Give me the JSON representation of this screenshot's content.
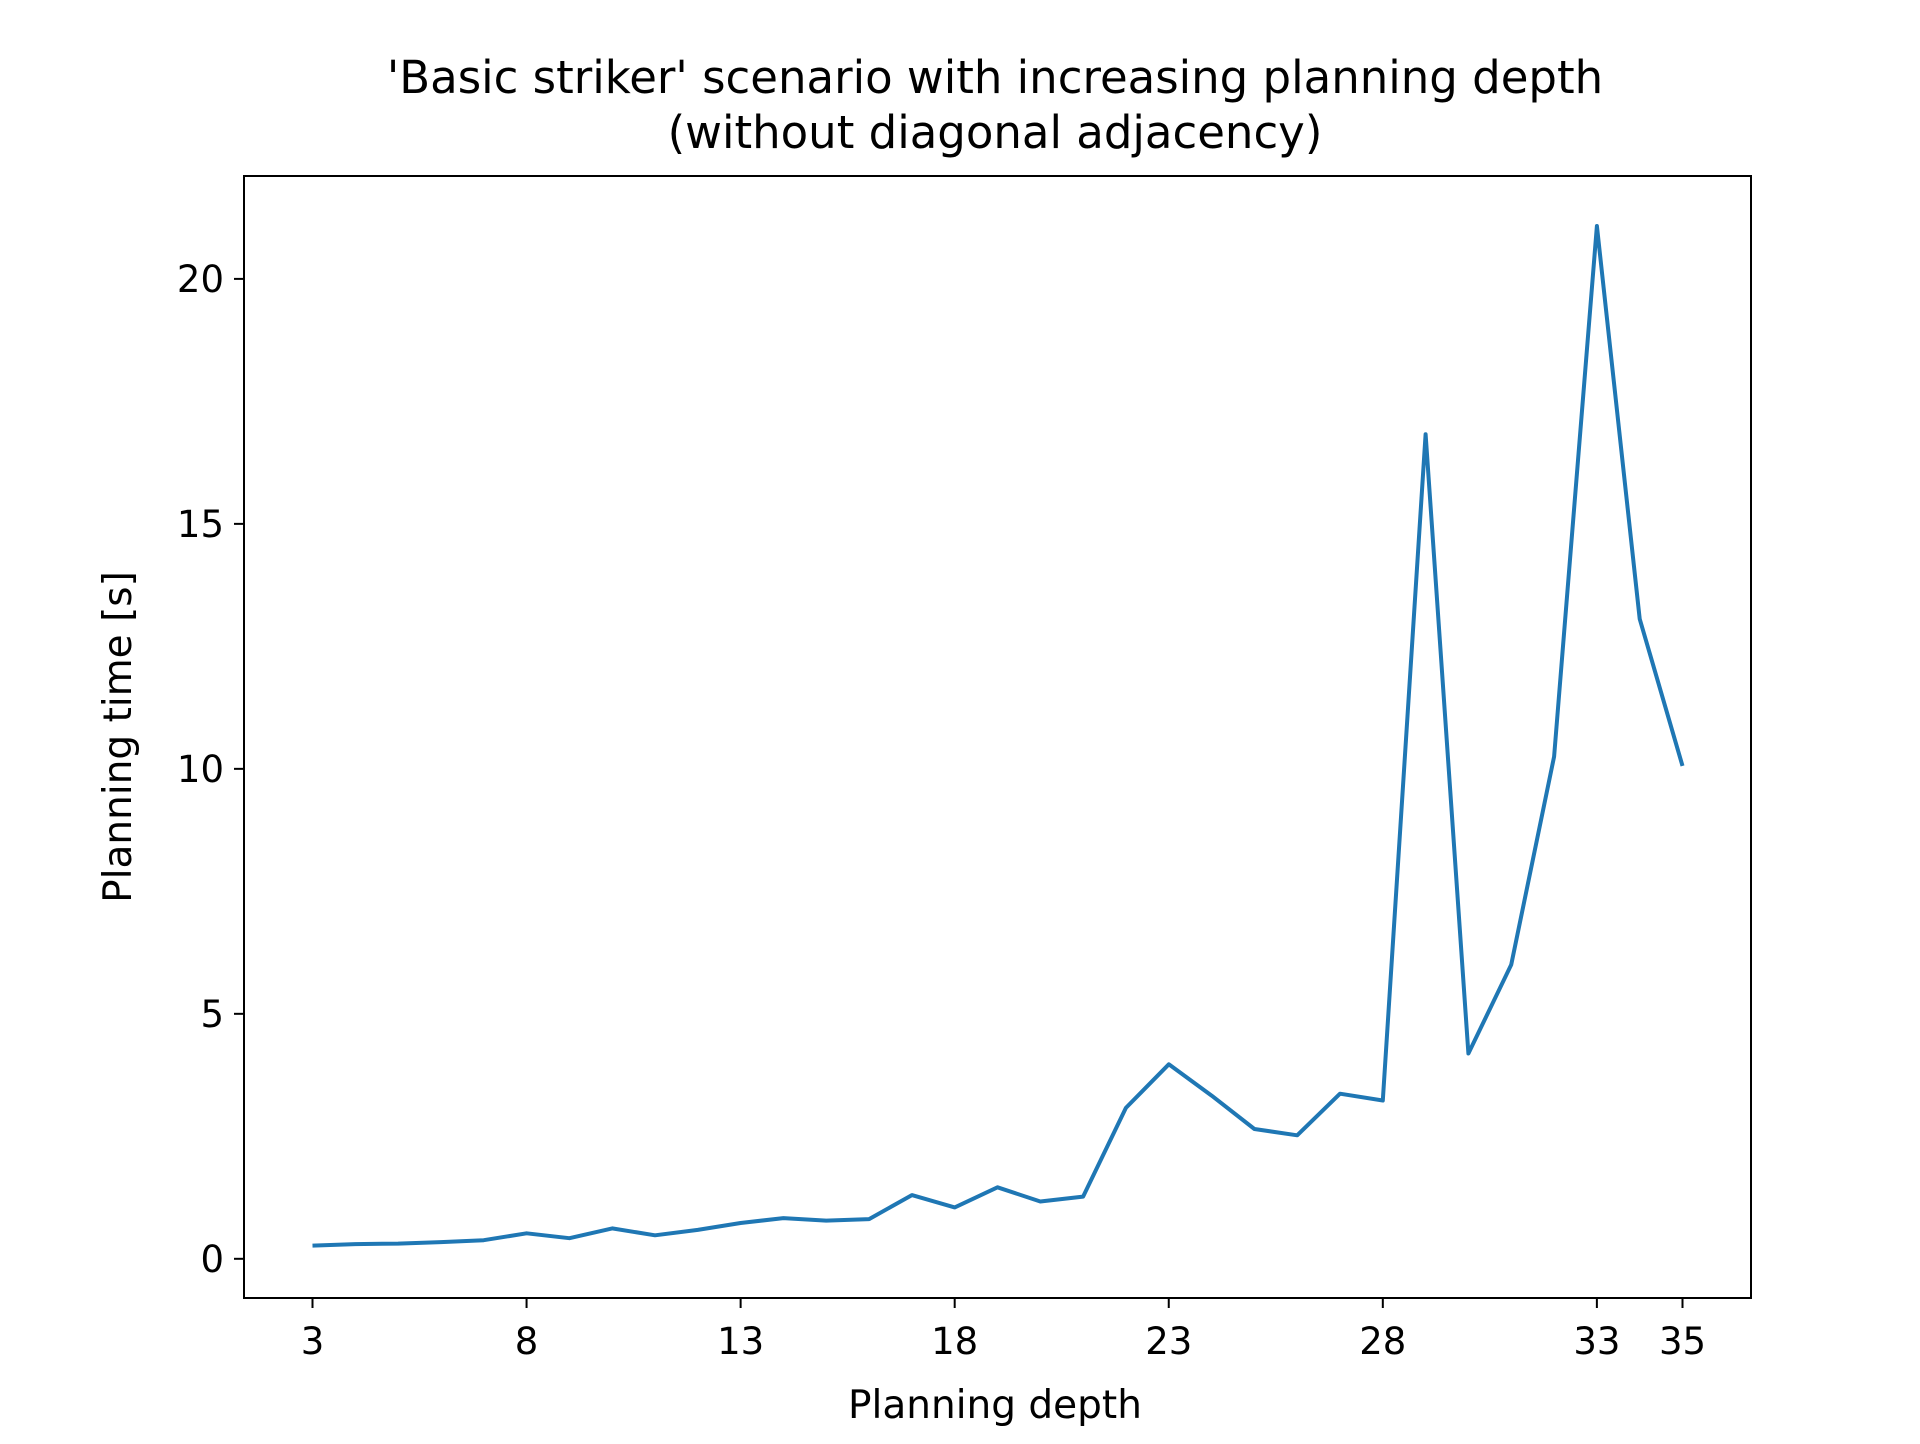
{
  "chart_data": {
    "type": "line",
    "title": "'Basic striker' scenario with increasing planning depth",
    "subtitle": "(without diagonal adjacency)",
    "xlabel": "Planning depth",
    "ylabel": "Planning time [s]",
    "x_ticks": [
      3,
      8,
      13,
      18,
      23,
      28,
      33,
      35
    ],
    "y_ticks": [
      0,
      5,
      10,
      15,
      20
    ],
    "xlim": [
      1.4,
      36.6
    ],
    "ylim": [
      -0.8,
      22.1
    ],
    "grid": false,
    "line_color": "#1f77b4",
    "series": [
      {
        "x": [
          3,
          4,
          5,
          6,
          7,
          8,
          9,
          10,
          11,
          12,
          13,
          14,
          15,
          16,
          17,
          18,
          19,
          20,
          21,
          22,
          23,
          24,
          25,
          26,
          27,
          28,
          29,
          30,
          31,
          32,
          33,
          34,
          35
        ],
        "values": [
          0.27,
          0.3,
          0.31,
          0.34,
          0.38,
          0.52,
          0.42,
          0.62,
          0.48,
          0.59,
          0.73,
          0.83,
          0.78,
          0.81,
          1.3,
          1.05,
          1.46,
          1.17,
          1.27,
          3.08,
          3.97,
          3.33,
          2.65,
          2.52,
          3.37,
          3.23,
          16.83,
          4.19,
          6.0,
          10.25,
          21.08,
          13.06,
          10.06
        ]
      }
    ]
  }
}
